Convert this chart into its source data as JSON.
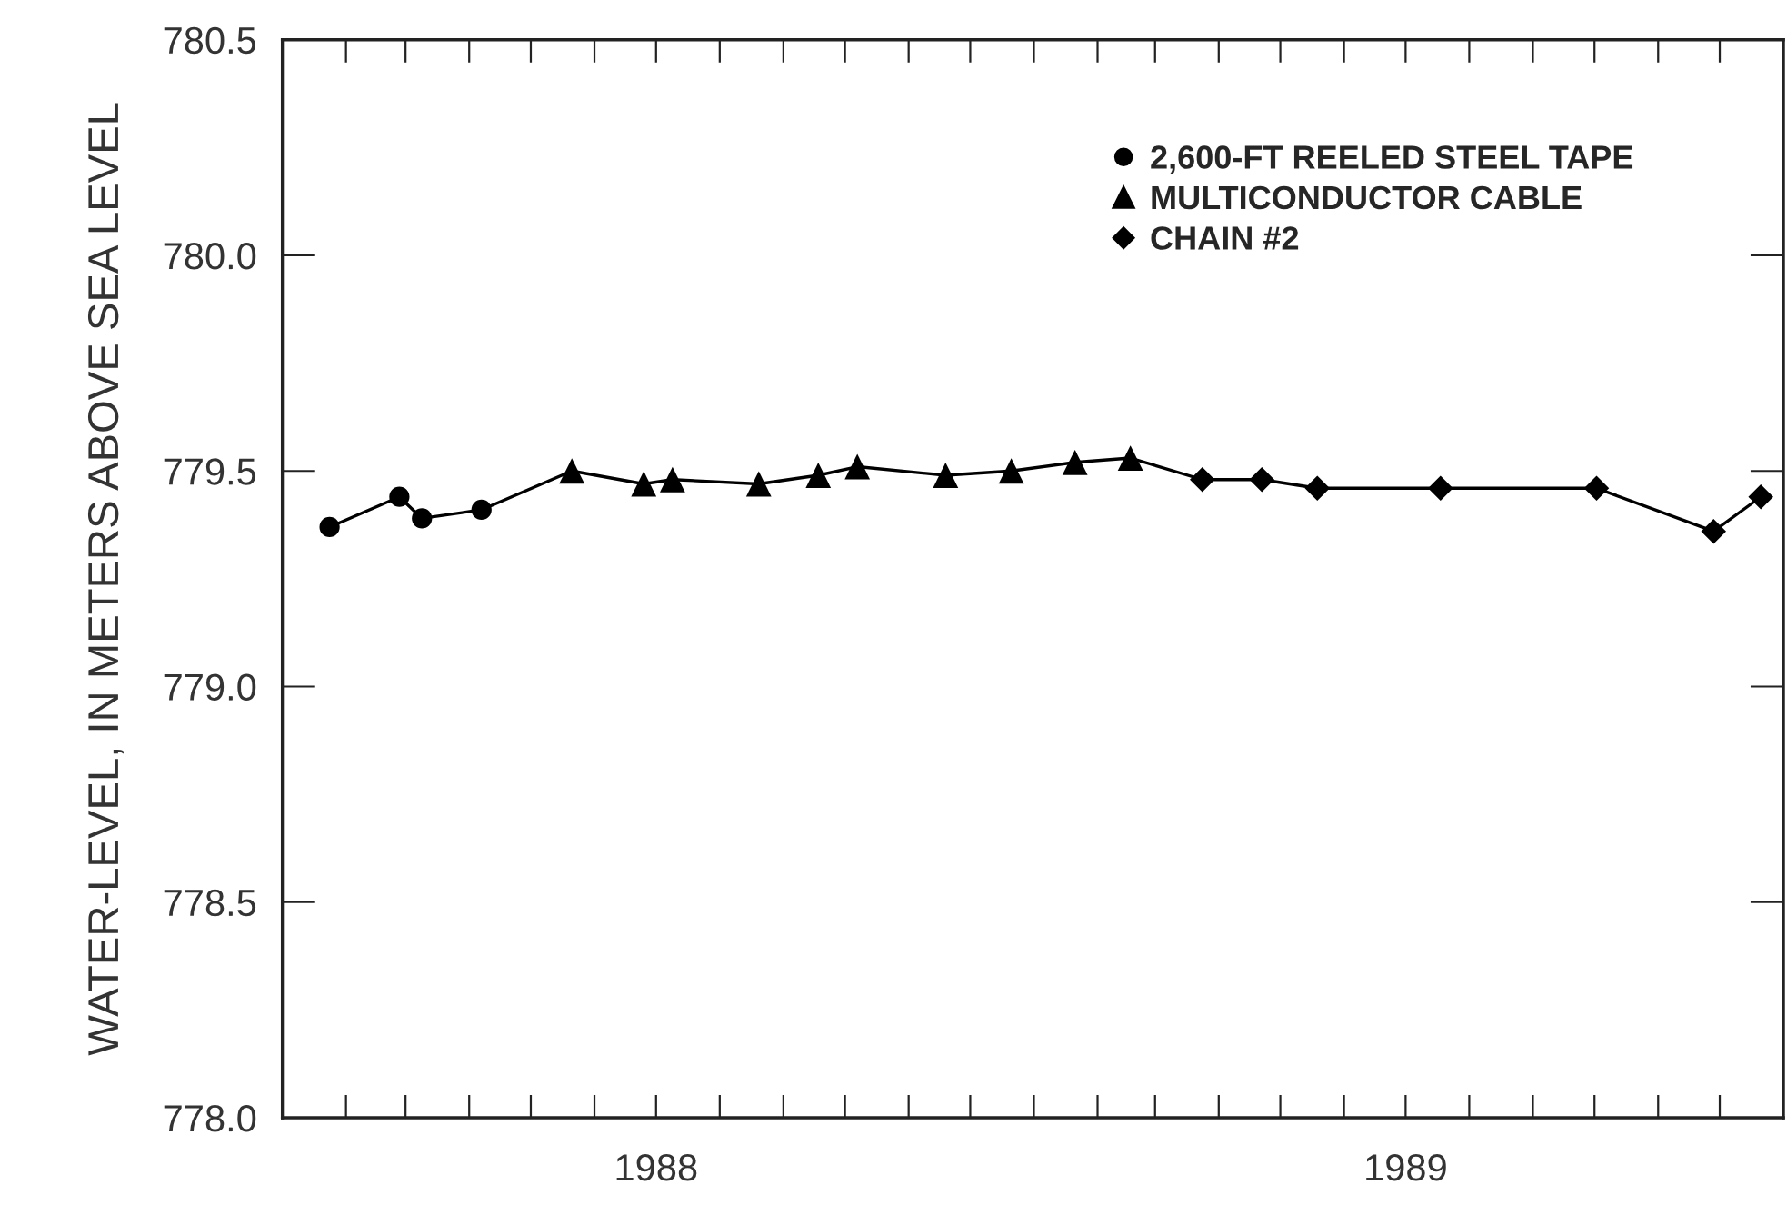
{
  "chart_data": {
    "type": "line",
    "ylabel": "WATER-LEVEL, IN METERS ABOVE SEA LEVEL",
    "xlim": [
      "1988-01-01",
      "1990-01-01"
    ],
    "xticks": [
      {
        "value": "1988-01-01",
        "label": null
      },
      {
        "value": "1988-02-01",
        "label": null
      },
      {
        "value": "1988-03-01",
        "label": null
      },
      {
        "value": "1988-04-01",
        "label": null
      },
      {
        "value": "1988-05-01",
        "label": null
      },
      {
        "value": "1988-06-01",
        "label": null
      },
      {
        "value": "1988-07-01",
        "label": "1988"
      },
      {
        "value": "1988-08-01",
        "label": null
      },
      {
        "value": "1988-09-01",
        "label": null
      },
      {
        "value": "1988-10-01",
        "label": null
      },
      {
        "value": "1988-11-01",
        "label": null
      },
      {
        "value": "1988-12-01",
        "label": null
      },
      {
        "value": "1989-01-01",
        "label": null
      },
      {
        "value": "1989-02-01",
        "label": null
      },
      {
        "value": "1989-03-01",
        "label": null
      },
      {
        "value": "1989-04-01",
        "label": null
      },
      {
        "value": "1989-05-01",
        "label": null
      },
      {
        "value": "1989-06-01",
        "label": null
      },
      {
        "value": "1989-07-01",
        "label": "1989"
      },
      {
        "value": "1989-08-01",
        "label": null
      },
      {
        "value": "1989-09-01",
        "label": null
      },
      {
        "value": "1989-10-01",
        "label": null
      },
      {
        "value": "1989-11-01",
        "label": null
      },
      {
        "value": "1989-12-01",
        "label": null
      }
    ],
    "ylim": [
      778.0,
      780.5
    ],
    "yticks": [
      {
        "value": 778.0,
        "label": "778.0"
      },
      {
        "value": 778.5,
        "label": "778.5"
      },
      {
        "value": 779.0,
        "label": "779.0"
      },
      {
        "value": 779.5,
        "label": "779.5"
      },
      {
        "value": 780.0,
        "label": "780.0"
      },
      {
        "value": 780.5,
        "label": "780.5"
      }
    ],
    "grid": false,
    "legend": "top right",
    "series": [
      {
        "type": "line",
        "color": "#000000",
        "marker": "none",
        "line_style": "solid",
        "x": [
          "1988-01-24",
          "1988-02-27",
          "1988-03-09",
          "1988-04-07",
          "1988-05-21",
          "1988-06-25",
          "1988-07-09",
          "1988-08-20",
          "1988-09-18",
          "1988-10-07",
          "1988-11-19",
          "1988-12-21",
          "1989-01-21",
          "1989-02-17",
          "1989-03-24",
          "1989-04-22",
          "1989-05-19",
          "1989-07-18",
          "1989-10-02",
          "1989-11-28",
          "1989-12-21"
        ],
        "values": [
          779.37,
          779.44,
          779.39,
          779.41,
          779.5,
          779.47,
          779.48,
          779.47,
          779.49,
          779.51,
          779.49,
          779.5,
          779.52,
          779.53,
          779.48,
          779.48,
          779.46,
          779.46,
          779.46,
          779.36,
          779.44
        ]
      },
      {
        "type": "scatter",
        "name": "2,600-FT REELED STEEL TAPE",
        "color": "#000000",
        "marker": "circle",
        "x": [
          "1988-01-24",
          "1988-02-27",
          "1988-03-09",
          "1988-04-07"
        ],
        "values": [
          779.37,
          779.44,
          779.39,
          779.41
        ]
      },
      {
        "type": "scatter",
        "name": "MULTICONDUCTOR CABLE",
        "color": "#000000",
        "marker": "triangle",
        "x": [
          "1988-05-21",
          "1988-06-25",
          "1988-07-09",
          "1988-08-20",
          "1988-09-18",
          "1988-10-07",
          "1988-11-19",
          "1988-12-21",
          "1989-01-21",
          "1989-02-17"
        ],
        "values": [
          779.5,
          779.47,
          779.48,
          779.47,
          779.49,
          779.51,
          779.49,
          779.5,
          779.52,
          779.53
        ]
      },
      {
        "type": "scatter",
        "name": "CHAIN #2",
        "color": "#000000",
        "marker": "diamond",
        "x": [
          "1989-03-24",
          "1989-04-22",
          "1989-05-19",
          "1989-07-18",
          "1989-10-02",
          "1989-11-28",
          "1989-12-21"
        ],
        "values": [
          779.48,
          779.48,
          779.46,
          779.46,
          779.46,
          779.36,
          779.44
        ]
      }
    ]
  }
}
